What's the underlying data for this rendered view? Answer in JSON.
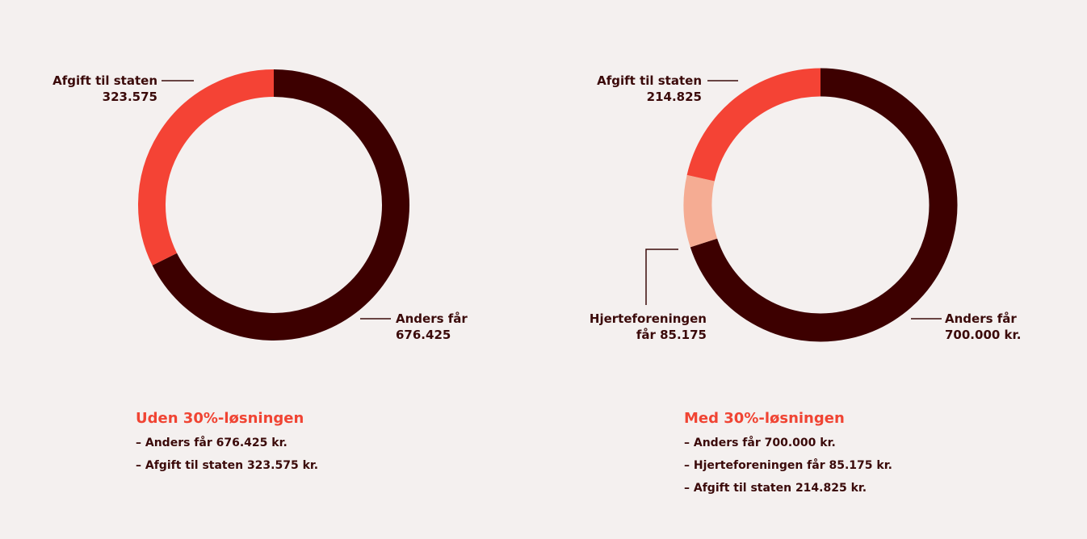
{
  "colors": {
    "anders": "#3d0000",
    "staten": "#f44335",
    "hjerte": "#f5ac93",
    "heading": "#f04433",
    "text": "#3b0a0a",
    "background": "#f4f0ef"
  },
  "chart_data": [
    {
      "type": "pie",
      "donut": true,
      "slices": [
        {
          "label": "Anders får",
          "value": 676425,
          "color": "#3d0000"
        },
        {
          "label": "Afgift til staten",
          "value": 323575,
          "color": "#f44335"
        }
      ]
    },
    {
      "type": "pie",
      "donut": true,
      "slices": [
        {
          "label": "Anders får",
          "value": 700000,
          "color": "#3d0000"
        },
        {
          "label": "Hjerteforeningen får",
          "value": 85175,
          "color": "#f5ac93"
        },
        {
          "label": "Afgift til staten",
          "value": 214825,
          "color": "#f44335"
        }
      ]
    }
  ],
  "left": {
    "label_staten": {
      "line1": "Afgift til staten",
      "line2": "323.575"
    },
    "label_anders": {
      "line1": "Anders får",
      "line2": "676.425"
    },
    "summary": {
      "heading": "Uden 30%-løsningen",
      "items": [
        "– Anders får 676.425 kr.",
        "– Afgift til staten 323.575 kr."
      ]
    }
  },
  "right": {
    "label_staten": {
      "line1": "Afgift til staten",
      "line2": "214.825"
    },
    "label_hjerte": {
      "line1": "Hjerteforeningen",
      "line2": "får 85.175"
    },
    "label_anders": {
      "line1": "Anders får",
      "line2": "700.000 kr."
    },
    "summary": {
      "heading": "Med 30%-løsningen",
      "items": [
        "– Anders får 700.000 kr.",
        "– Hjerteforeningen får 85.175 kr.",
        "– Afgift til staten 214.825 kr."
      ]
    }
  }
}
